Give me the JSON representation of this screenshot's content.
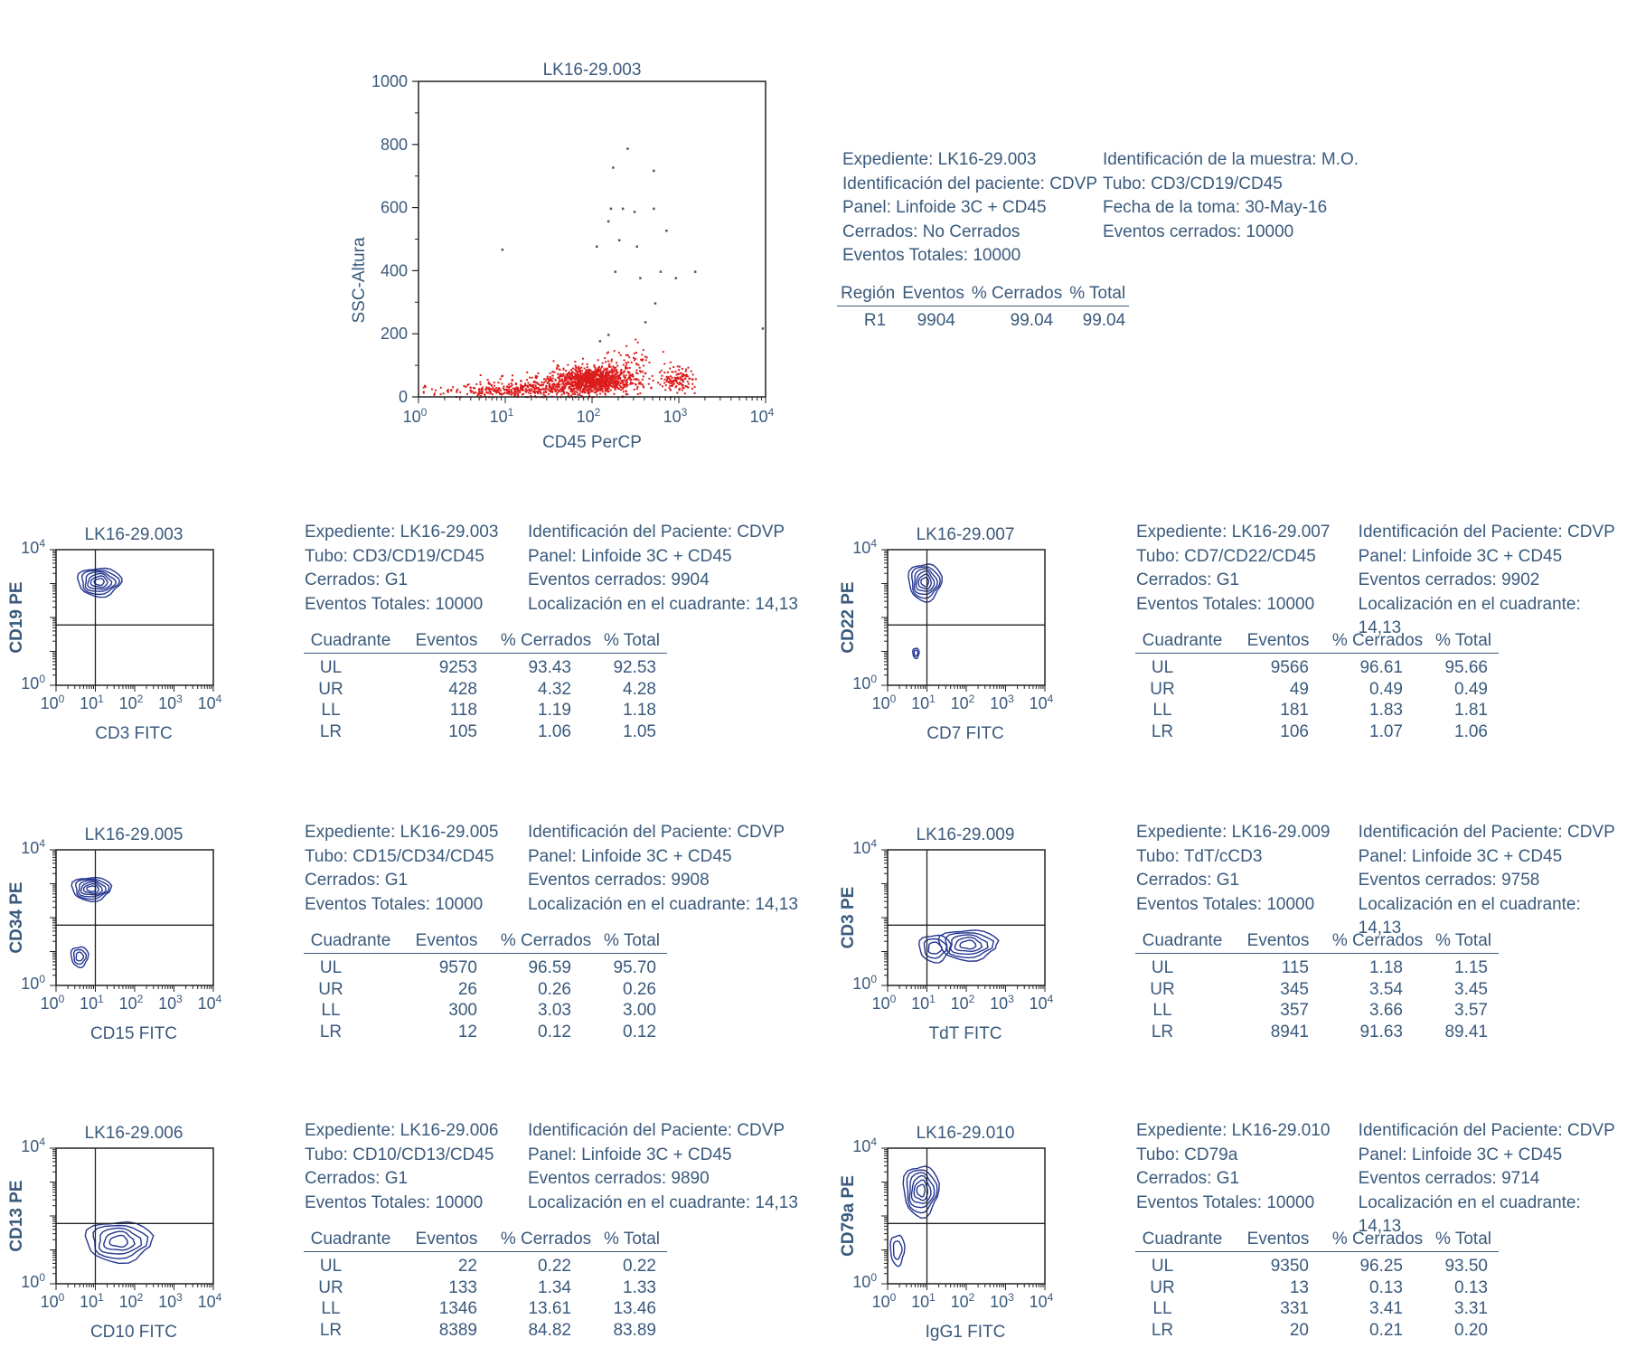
{
  "colors": {
    "text": "#3a5a7c",
    "contour": "#23358f",
    "dot": "#dd1c1c"
  },
  "scatter": {
    "chart_data": {
      "type": "scatter",
      "title": "LK16-29.003",
      "xlabel": "CD45 PerCP",
      "ylabel": "SSC-Altura",
      "xscale": "log",
      "xlim": [
        1,
        10000
      ],
      "ylim": [
        0,
        1000
      ],
      "x_ticks": [
        "10^0",
        "10^1",
        "10^2",
        "10^3",
        "10^4"
      ],
      "y_ticks": [
        "0",
        "200",
        "400",
        "600",
        "800",
        "1000"
      ],
      "outliers": [
        [
          9,
          470
        ],
        [
          120,
          180
        ],
        [
          150,
          200
        ],
        [
          110,
          480
        ],
        [
          150,
          560
        ],
        [
          160,
          600
        ],
        [
          170,
          730
        ],
        [
          180,
          400
        ],
        [
          200,
          500
        ],
        [
          220,
          600
        ],
        [
          250,
          790
        ],
        [
          300,
          590
        ],
        [
          320,
          480
        ],
        [
          350,
          380
        ],
        [
          400,
          240
        ],
        [
          500,
          600
        ],
        [
          520,
          300
        ],
        [
          500,
          720
        ],
        [
          600,
          400
        ],
        [
          700,
          530
        ],
        [
          900,
          380
        ],
        [
          1500,
          400
        ],
        [
          9000,
          220
        ]
      ]
    },
    "info": {
      "left": [
        "Expediente: LK16-29.003",
        "Identificación del paciente: CDVP",
        "Panel: Linfoide 3C + CD45",
        "Cerrados: No Cerrados",
        "Eventos Totales: 10000"
      ],
      "right": [
        "Identificación de la muestra: M.O.",
        "Tubo: CD3/CD19/CD45",
        "Fecha de la toma: 30-May-16",
        "Eventos cerrados: 10000"
      ]
    },
    "region_table": {
      "headers": [
        "Región",
        "Eventos",
        "% Cerrados",
        "% Total"
      ],
      "rows": [
        [
          "R1",
          "9904",
          "99.04",
          "99.04"
        ]
      ]
    }
  },
  "panels": [
    {
      "chart_data": {
        "type": "contour",
        "title": "LK16-29.003",
        "xlabel": "CD3 FITC",
        "ylabel": "CD19 PE",
        "xscale": "log",
        "yscale": "log",
        "xlim": [
          1,
          10000
        ],
        "ylim": [
          1,
          10000
        ],
        "quadrant_cross": [
          10,
          60
        ],
        "quadrant_events": {
          "UL": 9253,
          "UR": 428,
          "LL": 118,
          "LR": 105
        }
      },
      "info": {
        "col1": [
          "Expediente: LK16-29.003",
          "Tubo: CD3/CD19/CD45",
          "Cerrados: G1",
          "Eventos Totales: 10000"
        ],
        "col2": [
          "Identificación del Paciente: CDVP",
          "Panel: Linfoide 3C + CD45",
          "Eventos cerrados: 9904",
          "Localización en el cuadrante: 14,13"
        ]
      },
      "table": {
        "headers": [
          "Cuadrante",
          "Eventos",
          "% Cerrados",
          "% Total"
        ],
        "rows": [
          [
            "UL",
            "9253",
            "93.43",
            "92.53"
          ],
          [
            "UR",
            "428",
            "4.32",
            "4.28"
          ],
          [
            "LL",
            "118",
            "1.19",
            "1.18"
          ],
          [
            "LR",
            "105",
            "1.06",
            "1.05"
          ]
        ]
      }
    },
    {
      "chart_data": {
        "type": "contour",
        "title": "LK16-29.007",
        "xlabel": "CD7 FITC",
        "ylabel": "CD22 PE",
        "xscale": "log",
        "yscale": "log",
        "xlim": [
          1,
          10000
        ],
        "ylim": [
          1,
          10000
        ],
        "quadrant_cross": [
          10,
          60
        ],
        "quadrant_events": {
          "UL": 9566,
          "UR": 49,
          "LL": 181,
          "LR": 106
        }
      },
      "info": {
        "col1": [
          "Expediente: LK16-29.007",
          "Tubo: CD7/CD22/CD45",
          "Cerrados: G1",
          "Eventos Totales: 10000"
        ],
        "col2": [
          "Identificación del Paciente: CDVP",
          "Panel: Linfoide 3C + CD45",
          "Eventos cerrados: 9902",
          "Localización en el cuadrante: 14,13"
        ]
      },
      "table": {
        "headers": [
          "Cuadrante",
          "Eventos",
          "% Cerrados",
          "% Total"
        ],
        "rows": [
          [
            "UL",
            "9566",
            "96.61",
            "95.66"
          ],
          [
            "UR",
            "49",
            "0.49",
            "0.49"
          ],
          [
            "LL",
            "181",
            "1.83",
            "1.81"
          ],
          [
            "LR",
            "106",
            "1.07",
            "1.06"
          ]
        ]
      }
    },
    {
      "chart_data": {
        "type": "contour",
        "title": "LK16-29.005",
        "xlabel": "CD15 FITC",
        "ylabel": "CD34 PE",
        "xscale": "log",
        "yscale": "log",
        "xlim": [
          1,
          10000
        ],
        "ylim": [
          1,
          10000
        ],
        "quadrant_cross": [
          10,
          60
        ],
        "quadrant_events": {
          "UL": 9570,
          "UR": 26,
          "LL": 300,
          "LR": 12
        }
      },
      "info": {
        "col1": [
          "Expediente: LK16-29.005",
          "Tubo: CD15/CD34/CD45",
          "Cerrados: G1",
          "Eventos Totales: 10000"
        ],
        "col2": [
          "Identificación del Paciente: CDVP",
          "Panel: Linfoide 3C + CD45",
          "Eventos cerrados: 9908",
          "Localización en el cuadrante: 14,13"
        ]
      },
      "table": {
        "headers": [
          "Cuadrante",
          "Eventos",
          "% Cerrados",
          "% Total"
        ],
        "rows": [
          [
            "UL",
            "9570",
            "96.59",
            "95.70"
          ],
          [
            "UR",
            "26",
            "0.26",
            "0.26"
          ],
          [
            "LL",
            "300",
            "3.03",
            "3.00"
          ],
          [
            "LR",
            "12",
            "0.12",
            "0.12"
          ]
        ]
      }
    },
    {
      "chart_data": {
        "type": "contour",
        "title": "LK16-29.009",
        "xlabel": "TdT FITC",
        "ylabel": "CD3 PE",
        "xscale": "log",
        "yscale": "log",
        "xlim": [
          1,
          10000
        ],
        "ylim": [
          1,
          10000
        ],
        "quadrant_cross": [
          10,
          60
        ],
        "quadrant_events": {
          "UL": 115,
          "UR": 345,
          "LL": 357,
          "LR": 8941
        }
      },
      "info": {
        "col1": [
          "Expediente: LK16-29.009",
          "Tubo: TdT/cCD3",
          "Cerrados: G1",
          "Eventos Totales: 10000"
        ],
        "col2": [
          "Identificación del Paciente: CDVP",
          "Panel: Linfoide 3C + CD45",
          "Eventos cerrados: 9758",
          "Localización en el cuadrante: 14,13"
        ]
      },
      "table": {
        "headers": [
          "Cuadrante",
          "Eventos",
          "% Cerrados",
          "% Total"
        ],
        "rows": [
          [
            "UL",
            "115",
            "1.18",
            "1.15"
          ],
          [
            "UR",
            "345",
            "3.54",
            "3.45"
          ],
          [
            "LL",
            "357",
            "3.66",
            "3.57"
          ],
          [
            "LR",
            "8941",
            "91.63",
            "89.41"
          ]
        ]
      }
    },
    {
      "chart_data": {
        "type": "contour",
        "title": "LK16-29.006",
        "xlabel": "CD10 FITC",
        "ylabel": "CD13 PE",
        "xscale": "log",
        "yscale": "log",
        "xlim": [
          1,
          10000
        ],
        "ylim": [
          1,
          10000
        ],
        "quadrant_cross": [
          10,
          60
        ],
        "quadrant_events": {
          "UL": 22,
          "UR": 133,
          "LL": 1346,
          "LR": 8389
        }
      },
      "info": {
        "col1": [
          "Expediente: LK16-29.006",
          "Tubo: CD10/CD13/CD45",
          "Cerrados: G1",
          "Eventos Totales: 10000"
        ],
        "col2": [
          "Identificación del Paciente: CDVP",
          "Panel: Linfoide 3C + CD45",
          "Eventos cerrados: 9890",
          "Localización en el cuadrante: 14,13"
        ]
      },
      "table": {
        "headers": [
          "Cuadrante",
          "Eventos",
          "% Cerrados",
          "% Total"
        ],
        "rows": [
          [
            "UL",
            "22",
            "0.22",
            "0.22"
          ],
          [
            "UR",
            "133",
            "1.34",
            "1.33"
          ],
          [
            "LL",
            "1346",
            "13.61",
            "13.46"
          ],
          [
            "LR",
            "8389",
            "84.82",
            "83.89"
          ]
        ]
      }
    },
    {
      "chart_data": {
        "type": "contour",
        "title": "LK16-29.010",
        "xlabel": "IgG1 FITC",
        "ylabel": "CD79a PE",
        "xscale": "log",
        "yscale": "log",
        "xlim": [
          1,
          10000
        ],
        "ylim": [
          1,
          10000
        ],
        "quadrant_cross": [
          10,
          60
        ],
        "quadrant_events": {
          "UL": 9350,
          "UR": 13,
          "LL": 331,
          "LR": 20
        }
      },
      "info": {
        "col1": [
          "Expediente: LK16-29.010",
          "Tubo: CD79a",
          "Cerrados: G1",
          "Eventos Totales: 10000"
        ],
        "col2": [
          "Identificación del Paciente: CDVP",
          "Panel: Linfoide 3C + CD45",
          "Eventos cerrados: 9714",
          "Localización en el cuadrante: 14,13"
        ]
      },
      "table": {
        "headers": [
          "Cuadrante",
          "Eventos",
          "% Cerrados",
          "% Total"
        ],
        "rows": [
          [
            "UL",
            "9350",
            "96.25",
            "93.50"
          ],
          [
            "UR",
            "13",
            "0.13",
            "0.13"
          ],
          [
            "LL",
            "331",
            "3.41",
            "3.31"
          ],
          [
            "LR",
            "20",
            "0.21",
            "0.20"
          ]
        ]
      }
    }
  ]
}
